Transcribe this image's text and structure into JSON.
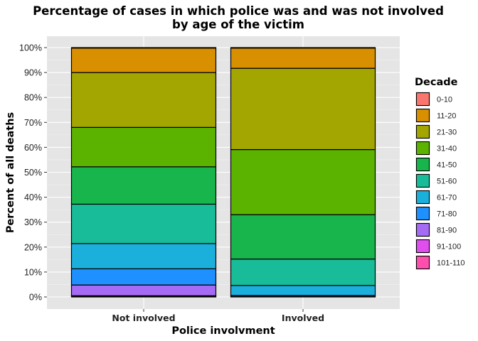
{
  "chart_data": {
    "type": "bar",
    "stacked": true,
    "title": [
      "Percentage of cases in which police was and was not involved",
      "by age of the victim"
    ],
    "xlabel": "Police involvment",
    "ylabel": "Percent of all deaths",
    "ylim": [
      0,
      100
    ],
    "yticks": [
      0,
      10,
      20,
      30,
      40,
      50,
      60,
      70,
      80,
      90,
      100
    ],
    "ytick_labels": [
      "0%",
      "10%",
      "20%",
      "30%",
      "40%",
      "50%",
      "60%",
      "70%",
      "80%",
      "90%",
      "100%"
    ],
    "categories": [
      "Not involved",
      "Involved"
    ],
    "legend_title": "Decade",
    "legend_position": "right",
    "grid": true,
    "series": [
      {
        "name": "0-10",
        "color": "#F8766D",
        "values": [
          0.2,
          0.2
        ]
      },
      {
        "name": "11-20",
        "color": "#D89000",
        "values": [
          9.8,
          8.1
        ]
      },
      {
        "name": "21-30",
        "color": "#A3A500",
        "values": [
          22.0,
          32.6
        ]
      },
      {
        "name": "31-40",
        "color": "#5BB300",
        "values": [
          15.8,
          26.1
        ]
      },
      {
        "name": "41-50",
        "color": "#17B54C",
        "values": [
          15.0,
          17.8
        ]
      },
      {
        "name": "51-60",
        "color": "#19BC98",
        "values": [
          15.8,
          10.6
        ]
      },
      {
        "name": "61-70",
        "color": "#1BAFDC",
        "values": [
          10.1,
          4.0
        ]
      },
      {
        "name": "71-80",
        "color": "#1E90FF",
        "values": [
          6.5,
          0.4
        ]
      },
      {
        "name": "81-90",
        "color": "#A56BF4",
        "values": [
          4.3,
          0.1
        ]
      },
      {
        "name": "91-100",
        "color": "#E04EEF",
        "values": [
          0.3,
          0.0
        ]
      },
      {
        "name": "101-110",
        "color": "#FF4FAE",
        "values": [
          0.2,
          0.1
        ]
      }
    ]
  }
}
